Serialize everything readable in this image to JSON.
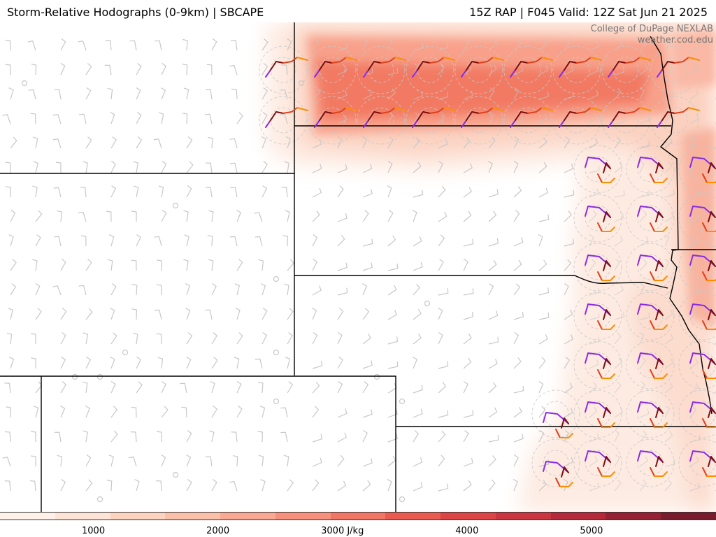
{
  "header": {
    "title_left": "Storm-Relative Hodographs (0-9km) | SBCAPE",
    "title_right": "15Z RAP | F045 Valid: 12Z Sat Jun 21 2025"
  },
  "credit": {
    "line1": "College of DuPage NEXLAB",
    "line2": "weather.cod.edu"
  },
  "colorbar": {
    "labels": [
      "1000",
      "2000",
      "3000 J/kg",
      "4000",
      "5000"
    ],
    "values": [
      1000,
      2000,
      3000,
      4000,
      5000
    ],
    "range": [
      250,
      6000
    ],
    "colors": [
      "#fdf1ea",
      "#fde4d6",
      "#fcd3c0",
      "#fbc0aa",
      "#f9a893",
      "#f68f7b",
      "#f17565",
      "#ea5a50",
      "#dd4445",
      "#cb3540",
      "#b4283a",
      "#962034",
      "#7a1b2d"
    ]
  },
  "map": {
    "cape_colors": {
      "light": "#fde9df",
      "mid": "#fbc7b3",
      "high": "#f7937e",
      "peak": "#f27561"
    },
    "hodo_colors": {
      "low": "#7a0d0d",
      "mid1": "#e0401a",
      "mid2": "#ff8c00",
      "upper": "#8a2be2"
    },
    "barb_color": "#c8c8c8",
    "border_color": "#000000"
  }
}
